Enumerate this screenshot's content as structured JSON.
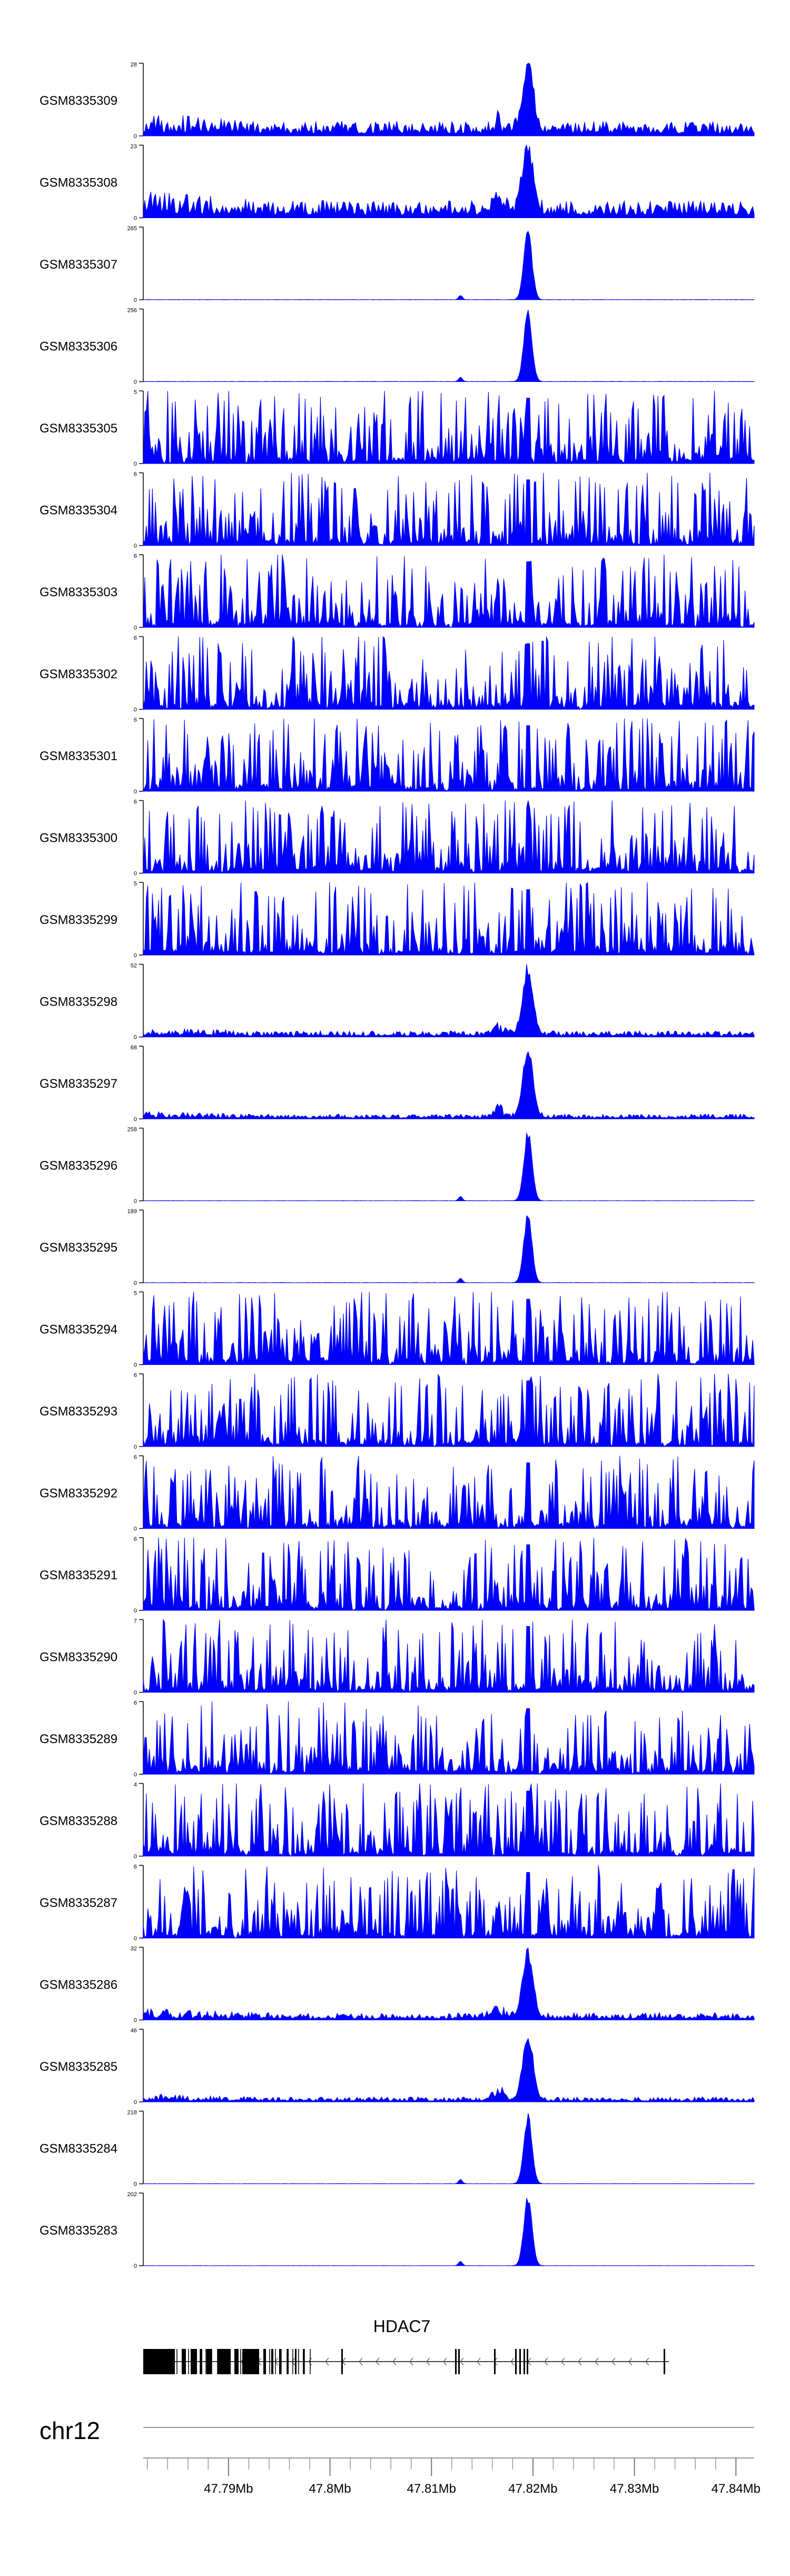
{
  "chart_data": {
    "type": "area",
    "genome": {
      "chromosome": "chr12",
      "xlim": [
        47.7816,
        47.8418
      ],
      "x_ticks": [
        47.79,
        47.8,
        47.81,
        47.82,
        47.83,
        47.84
      ],
      "x_tick_labels": [
        "47.79Mb",
        "47.8Mb",
        "47.81Mb",
        "47.82Mb",
        "47.83Mb",
        "47.84Mb"
      ],
      "peak_center": 47.8195,
      "gene": {
        "name": "HDAC7",
        "strand": "-",
        "start": 47.7816,
        "end": 47.8334
      }
    },
    "series": [
      {
        "name": "GSM8335309",
        "ymax": 28,
        "profile": "background-peak",
        "peak": 27.5,
        "bg": 0.12
      },
      {
        "name": "GSM8335308",
        "ymax": 23,
        "profile": "background-peak",
        "peak": 22.5,
        "bg": 0.14
      },
      {
        "name": "GSM8335307",
        "ymax": 265,
        "profile": "sharp-peak",
        "peak": 262,
        "bg": 0.004
      },
      {
        "name": "GSM8335306",
        "ymax": 256,
        "profile": "sharp-peak",
        "peak": 253,
        "bg": 0.004
      },
      {
        "name": "GSM8335305",
        "ymax": 5,
        "profile": "noise",
        "peak": 4.9,
        "bg": 0.45
      },
      {
        "name": "GSM8335304",
        "ymax": 6,
        "profile": "noise",
        "peak": 5.9,
        "bg": 0.45
      },
      {
        "name": "GSM8335303",
        "ymax": 6,
        "profile": "noise",
        "peak": 5.9,
        "bg": 0.4
      },
      {
        "name": "GSM8335302",
        "ymax": 6,
        "profile": "noise",
        "peak": 5.9,
        "bg": 0.42
      },
      {
        "name": "GSM8335301",
        "ymax": 6,
        "profile": "noise",
        "peak": 5.9,
        "bg": 0.42
      },
      {
        "name": "GSM8335300",
        "ymax": 6,
        "profile": "noise",
        "peak": 5.9,
        "bg": 0.45
      },
      {
        "name": "GSM8335299",
        "ymax": 5,
        "profile": "noise",
        "peak": 4.9,
        "bg": 0.42
      },
      {
        "name": "GSM8335298",
        "ymax": 52,
        "profile": "background-peak",
        "peak": 51,
        "bg": 0.05
      },
      {
        "name": "GSM8335297",
        "ymax": 68,
        "profile": "background-peak",
        "peak": 66,
        "bg": 0.04
      },
      {
        "name": "GSM8335296",
        "ymax": 258,
        "profile": "sharp-peak",
        "peak": 255,
        "bg": 0.003
      },
      {
        "name": "GSM8335295",
        "ymax": 189,
        "profile": "sharp-peak",
        "peak": 186,
        "bg": 0.004
      },
      {
        "name": "GSM8335294",
        "ymax": 5,
        "profile": "noise",
        "peak": 4.9,
        "bg": 0.45
      },
      {
        "name": "GSM8335293",
        "ymax": 6,
        "profile": "noise",
        "peak": 5.9,
        "bg": 0.42
      },
      {
        "name": "GSM8335292",
        "ymax": 6,
        "profile": "noise",
        "peak": 5.9,
        "bg": 0.45
      },
      {
        "name": "GSM8335291",
        "ymax": 6,
        "profile": "noise",
        "peak": 5.9,
        "bg": 0.42
      },
      {
        "name": "GSM8335290",
        "ymax": 7,
        "profile": "noise",
        "peak": 6.9,
        "bg": 0.4
      },
      {
        "name": "GSM8335289",
        "ymax": 6,
        "profile": "noise",
        "peak": 5.9,
        "bg": 0.45
      },
      {
        "name": "GSM8335288",
        "ymax": 4,
        "profile": "noise",
        "peak": 3.9,
        "bg": 0.45
      },
      {
        "name": "GSM8335287",
        "ymax": 6,
        "profile": "noise",
        "peak": 5.9,
        "bg": 0.42
      },
      {
        "name": "GSM8335286",
        "ymax": 32,
        "profile": "background-peak",
        "peak": 31,
        "bg": 0.06
      },
      {
        "name": "GSM8335285",
        "ymax": 46,
        "profile": "background-peak",
        "peak": 45,
        "bg": 0.04
      },
      {
        "name": "GSM8335284",
        "ymax": 218,
        "profile": "sharp-peak",
        "peak": 215,
        "bg": 0.003
      },
      {
        "name": "GSM8335283",
        "ymax": 202,
        "profile": "sharp-peak",
        "peak": 199,
        "bg": 0.003
      }
    ],
    "title": "",
    "xlabel": "",
    "ylabel": "",
    "fill_color": "#0000ff",
    "grid": false,
    "legend": "none"
  }
}
